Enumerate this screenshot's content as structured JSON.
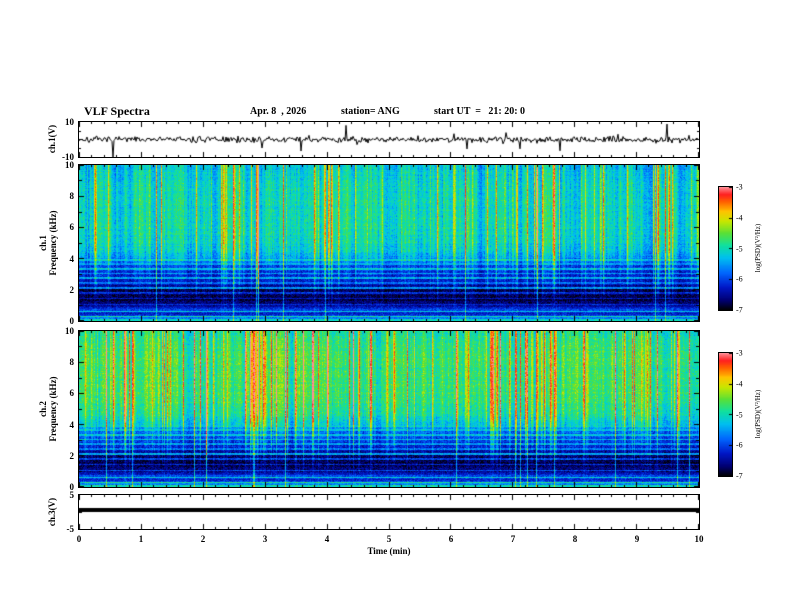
{
  "header": {
    "title": "VLF Spectra",
    "date": "Apr. 8  , 2026",
    "station": "station= ANG",
    "start_ut": "start UT  =   21: 20: 0"
  },
  "x_axis": {
    "label": "Time (min)",
    "min": 0,
    "max": 10,
    "ticks": [
      0,
      1,
      2,
      3,
      4,
      5,
      6,
      7,
      8,
      9,
      10
    ]
  },
  "colorbar": {
    "label": "log(PSD)(V²/Hz)",
    "min": -7,
    "max": -3,
    "ticks": [
      -3,
      -4,
      -5,
      -6,
      -7
    ],
    "colormap": [
      [
        0.0,
        "#000008"
      ],
      [
        0.07,
        "#000070"
      ],
      [
        0.18,
        "#0018c8"
      ],
      [
        0.3,
        "#0068ff"
      ],
      [
        0.42,
        "#00c0f0"
      ],
      [
        0.52,
        "#10e0a0"
      ],
      [
        0.62,
        "#58e038"
      ],
      [
        0.72,
        "#c8e800"
      ],
      [
        0.8,
        "#ffc400"
      ],
      [
        0.88,
        "#ff6000"
      ],
      [
        0.94,
        "#ff2020"
      ],
      [
        1.0,
        "#ff9098"
      ]
    ]
  },
  "chart_data": [
    {
      "id": "ch1_waveform",
      "type": "line",
      "ylabel": "ch.1(V)",
      "ylim": [
        -10,
        10
      ],
      "yticks": [
        10,
        -10
      ],
      "xlim": [
        0,
        10
      ],
      "color": "#000000",
      "noise_amp_V": 0.9,
      "spike_prob": 0.03,
      "spike_amp_V": 7,
      "description": "Black broadband noise trace centered on 0 V with sporadic impulsive spikes up to about ±8 V over the 10 minute record."
    },
    {
      "id": "ch1_spectrogram",
      "type": "heatmap",
      "ylabel_line1": "ch.1",
      "ylabel_line2": "Frequency (kHz)",
      "ylim": [
        0,
        10
      ],
      "yticks": [
        0,
        2,
        4,
        6,
        8,
        10
      ],
      "xlim": [
        0,
        10
      ],
      "zlim": [
        -7,
        -3
      ],
      "noise": 0.38,
      "profile": [
        [
          0,
          -6.0
        ],
        [
          0.2,
          -5.6
        ],
        [
          0.45,
          -6.3
        ],
        [
          0.7,
          -5.9
        ],
        [
          0.95,
          -6.6
        ],
        [
          1.5,
          -6.85
        ],
        [
          2.0,
          -6.8
        ],
        [
          2.4,
          -6.35
        ],
        [
          3.0,
          -6.15
        ],
        [
          3.6,
          -5.95
        ],
        [
          4.1,
          -5.45
        ],
        [
          4.8,
          -5.15
        ],
        [
          6.0,
          -5.05
        ],
        [
          8.0,
          -5.05
        ],
        [
          10,
          -5.25
        ]
      ],
      "lines": [
        [
          0.07,
          -5.0
        ],
        [
          0.3,
          -5.0
        ],
        [
          0.62,
          -5.3
        ],
        [
          1.05,
          -6.1
        ],
        [
          1.45,
          -6.3
        ],
        [
          1.8,
          -6.2
        ],
        [
          2.1,
          -5.6
        ],
        [
          2.45,
          -5.75
        ],
        [
          2.75,
          -5.5
        ],
        [
          3.05,
          -5.45
        ],
        [
          3.35,
          -5.3
        ],
        [
          3.65,
          -5.35
        ],
        [
          3.9,
          -5.2
        ]
      ],
      "streaks": {
        "prob": 0.12,
        "min": 0.3,
        "max": 1.5,
        "full_prob": 0.015,
        "full_boost": 1.6
      },
      "description": "Green/yellow background above ~4 kHz with dense vertical sferic streaks (some red), banded dark-blue/black region 1-2 kHz, bright narrow horizontal lines below 4 kHz."
    },
    {
      "id": "ch2_spectrogram",
      "type": "heatmap",
      "ylabel_line1": "ch.2",
      "ylabel_line2": "Frequency (kHz)",
      "ylim": [
        0,
        10
      ],
      "yticks": [
        0,
        2,
        4,
        6,
        8,
        10
      ],
      "xlim": [
        0,
        10
      ],
      "zlim": [
        -7,
        -3
      ],
      "noise": 0.4,
      "profile": [
        [
          0,
          -6.0
        ],
        [
          0.2,
          -5.6
        ],
        [
          0.45,
          -6.3
        ],
        [
          0.7,
          -5.9
        ],
        [
          0.95,
          -6.6
        ],
        [
          1.5,
          -6.85
        ],
        [
          2.0,
          -6.75
        ],
        [
          2.4,
          -6.3
        ],
        [
          3.0,
          -6.05
        ],
        [
          3.6,
          -5.8
        ],
        [
          4.1,
          -5.2
        ],
        [
          4.8,
          -4.85
        ],
        [
          6.0,
          -4.7
        ],
        [
          8.5,
          -4.7
        ],
        [
          10,
          -4.9
        ]
      ],
      "lines": [
        [
          0.07,
          -5.0
        ],
        [
          0.3,
          -4.9
        ],
        [
          0.62,
          -5.2
        ],
        [
          1.05,
          -6.0
        ],
        [
          1.45,
          -6.25
        ],
        [
          1.8,
          -6.1
        ],
        [
          2.1,
          -5.5
        ],
        [
          2.45,
          -5.7
        ],
        [
          2.75,
          -5.45
        ],
        [
          3.05,
          -5.4
        ],
        [
          3.35,
          -5.25
        ],
        [
          3.65,
          -5.3
        ],
        [
          3.9,
          -5.15
        ]
      ],
      "streaks": {
        "prob": 0.16,
        "min": 0.4,
        "max": 1.9,
        "full_prob": 0.02,
        "full_boost": 1.8
      },
      "description": "Like ch.1 but hotter: intense orange/red sferic streaks 5-10 kHz, banded dark-blue/black region 1-2 kHz, bright horizontal lines below 4 kHz."
    },
    {
      "id": "ch3_waveform",
      "type": "line",
      "ylabel": "ch.3(V)",
      "ylim": [
        -5,
        5
      ],
      "yticks": [
        5,
        -5
      ],
      "xlim": [
        0,
        10
      ],
      "color": "#000000",
      "constant_value_V": 0.5,
      "line_thickness_px": 4,
      "description": "Flat thick black line, constant near 0.5 V for the whole record."
    }
  ]
}
